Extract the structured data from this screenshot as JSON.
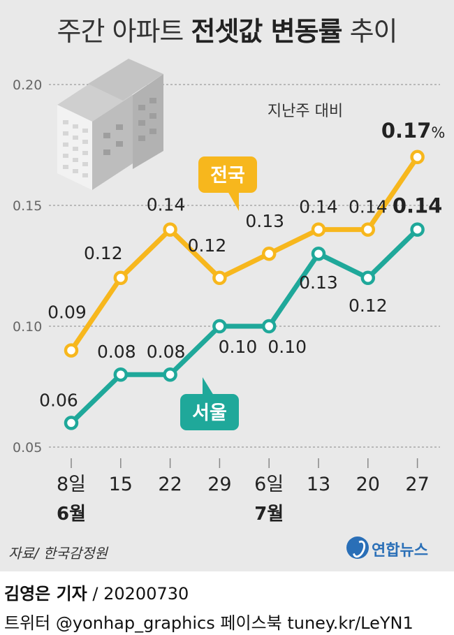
{
  "title": {
    "normal": "주간 아파트",
    "bold": "전셋값 변동률",
    "end": "추이"
  },
  "subtitle": "지난주 대비",
  "unit": "%",
  "colors": {
    "nation": "#f7b71d",
    "seoul": "#1fa89a",
    "grid": "#9a9a9a",
    "background": "#e9e9e9"
  },
  "chart_data": {
    "type": "line",
    "title": "주간 아파트 전셋값 변동률 추이",
    "ylabel": "",
    "xlabel": "",
    "ylim": [
      0.05,
      0.2
    ],
    "yticks": [
      "0.05",
      "0.10",
      "0.15",
      "0.20"
    ],
    "grid": true,
    "categories": [
      "8일",
      "15",
      "22",
      "29",
      "6일",
      "13",
      "20",
      "27"
    ],
    "month_labels": [
      {
        "index": 0,
        "label": "6월"
      },
      {
        "index": 4,
        "label": "7월"
      }
    ],
    "series": [
      {
        "name": "전국",
        "values": [
          0.09,
          0.12,
          0.14,
          0.12,
          0.13,
          0.14,
          0.14,
          0.17
        ],
        "labels": [
          "0.09",
          "0.12",
          "0.14",
          "0.12",
          "0.13",
          "0.14",
          "0.14",
          "0.17"
        ]
      },
      {
        "name": "서울",
        "values": [
          0.06,
          0.08,
          0.08,
          0.1,
          0.1,
          0.13,
          0.12,
          0.14
        ],
        "labels": [
          "0.06",
          "0.08",
          "0.08",
          "0.10",
          "0.10",
          "0.13",
          "0.12",
          "0.14"
        ]
      }
    ]
  },
  "source": "자료/ 한국감정원",
  "logo": "연합뉴스",
  "credit": {
    "name": "김영은 기자",
    "date": "/ 20200730"
  },
  "social": "트위터 @yonhap_graphics  페이스북 tuney.kr/LeYN1"
}
